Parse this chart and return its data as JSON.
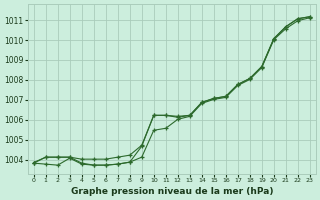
{
  "title": "Graphe pression niveau de la mer (hPa)",
  "hours": [
    0,
    1,
    2,
    3,
    4,
    5,
    6,
    7,
    8,
    9,
    10,
    11,
    12,
    13,
    14,
    15,
    16,
    17,
    18,
    19,
    20,
    21,
    22,
    23
  ],
  "ylim": [
    1003.3,
    1011.8
  ],
  "yticks": [
    1004,
    1005,
    1006,
    1007,
    1008,
    1009,
    1010,
    1011
  ],
  "line_A": [
    1003.85,
    1004.12,
    1004.12,
    1004.12,
    1003.82,
    1003.72,
    1003.72,
    1003.77,
    1003.87,
    1004.67,
    1006.22,
    1006.22,
    1006.12,
    1006.22,
    1006.87,
    1007.07,
    1007.17,
    1007.77,
    1008.07,
    1008.67,
    1010.07,
    1010.67,
    1011.07,
    1011.17
  ],
  "line_B": [
    1003.82,
    1003.77,
    1003.72,
    1004.07,
    1003.77,
    1003.72,
    1003.72,
    1003.77,
    1003.87,
    1004.12,
    1005.47,
    1005.57,
    1006.02,
    1006.17,
    1006.82,
    1007.02,
    1007.12,
    1007.72,
    1008.02,
    1008.62,
    1010.02,
    1010.57,
    1010.97,
    1011.12
  ],
  "line_C": [
    1003.82,
    1004.12,
    1004.12,
    1004.12,
    1004.02,
    1004.02,
    1004.02,
    1004.12,
    1004.22,
    1004.72,
    1006.22,
    1006.22,
    1006.17,
    1006.22,
    1006.87,
    1007.07,
    1007.17,
    1007.77,
    1008.07,
    1008.67,
    1010.07,
    1010.67,
    1011.07,
    1011.17
  ],
  "line_color": "#2d6a2d",
  "bg_color": "#cceedd",
  "grid_color": "#aaccbb",
  "title_color": "#1a3a1a"
}
